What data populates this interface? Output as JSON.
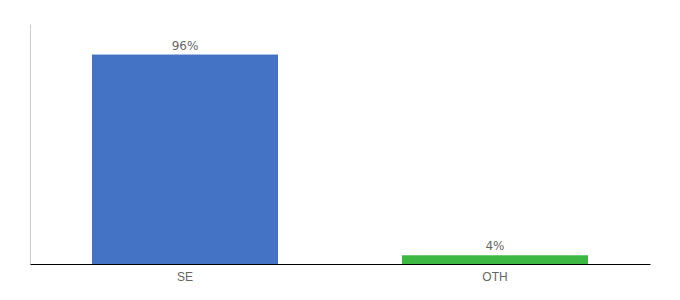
{
  "chart_data": {
    "type": "bar",
    "categories": [
      "SE",
      "OTH"
    ],
    "values": [
      96,
      4
    ],
    "value_labels": [
      "96%",
      "4%"
    ],
    "data_labels": true,
    "colors": [
      "#4472c4",
      "#3cb843"
    ],
    "ylim": [
      0,
      110
    ],
    "tick_labels": "x"
  }
}
